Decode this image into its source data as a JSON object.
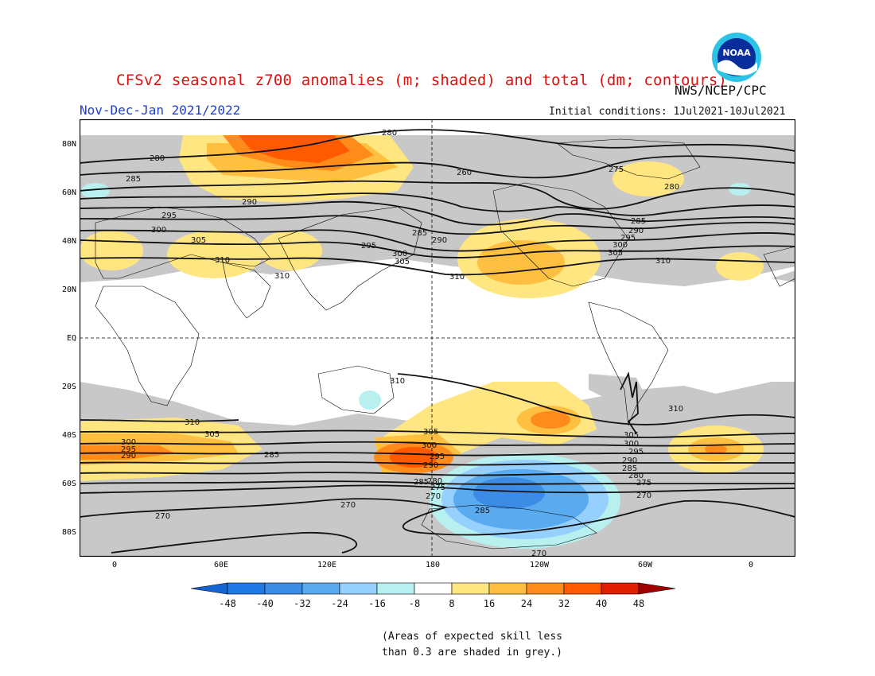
{
  "header": {
    "title": "CFSv2 seasonal z700 anomalies (m; shaded) and total (dm; contours)",
    "agency": "NWS/NCEP/CPC",
    "season": "Nov-Dec-Jan 2021/2022",
    "initial_conditions": "Initial conditions: 1Jul2021-10Jul2021",
    "logo_text": "NOAA"
  },
  "map": {
    "lat_labels": [
      "80N",
      "60N",
      "40N",
      "20N",
      "EQ",
      "20S",
      "40S",
      "60S",
      "80S"
    ],
    "lon_labels": [
      "0",
      "60E",
      "120E",
      "180",
      "120W",
      "60W",
      "0"
    ],
    "contour_labels": [
      "280",
      "280",
      "285",
      "290",
      "295",
      "300",
      "305",
      "310",
      "310",
      "260",
      "285",
      "290",
      "295",
      "300",
      "305",
      "310",
      "275",
      "280",
      "285",
      "290",
      "295",
      "300",
      "305",
      "310",
      "310",
      "305",
      "300",
      "295",
      "290",
      "285",
      "310",
      "305",
      "300",
      "295",
      "290",
      "285",
      "280",
      "275",
      "270",
      "310",
      "305",
      "300",
      "295",
      "290",
      "285",
      "280",
      "275",
      "270",
      "270",
      "270",
      "285",
      "270"
    ],
    "colors": {
      "grey": "#c8c8c8",
      "pos8": "#ffe680",
      "pos16": "#ffbf40",
      "pos24": "#ff8c1a",
      "pos32": "#ff5a00",
      "pos40": "#e01e00",
      "neg8": "#b8f0f0",
      "neg16": "#96d0ff",
      "neg24": "#5aaaf0",
      "neg32": "#3c8ce6"
    }
  },
  "colorbar": {
    "ticks": [
      "-48",
      "-40",
      "-32",
      "-24",
      "-16",
      "-8",
      "8",
      "16",
      "24",
      "32",
      "40",
      "48"
    ],
    "colors": [
      "#1464d2",
      "#1e78e6",
      "#3c8ce6",
      "#5aaaf0",
      "#96d0ff",
      "#b8f0f0",
      "#ffffff",
      "#ffe680",
      "#ffbf40",
      "#ff8c1a",
      "#ff5a00",
      "#e01e00",
      "#a00000"
    ]
  },
  "note": {
    "line1": "(Areas of expected skill less",
    "line2": "than 0.3 are shaded in grey.)"
  }
}
